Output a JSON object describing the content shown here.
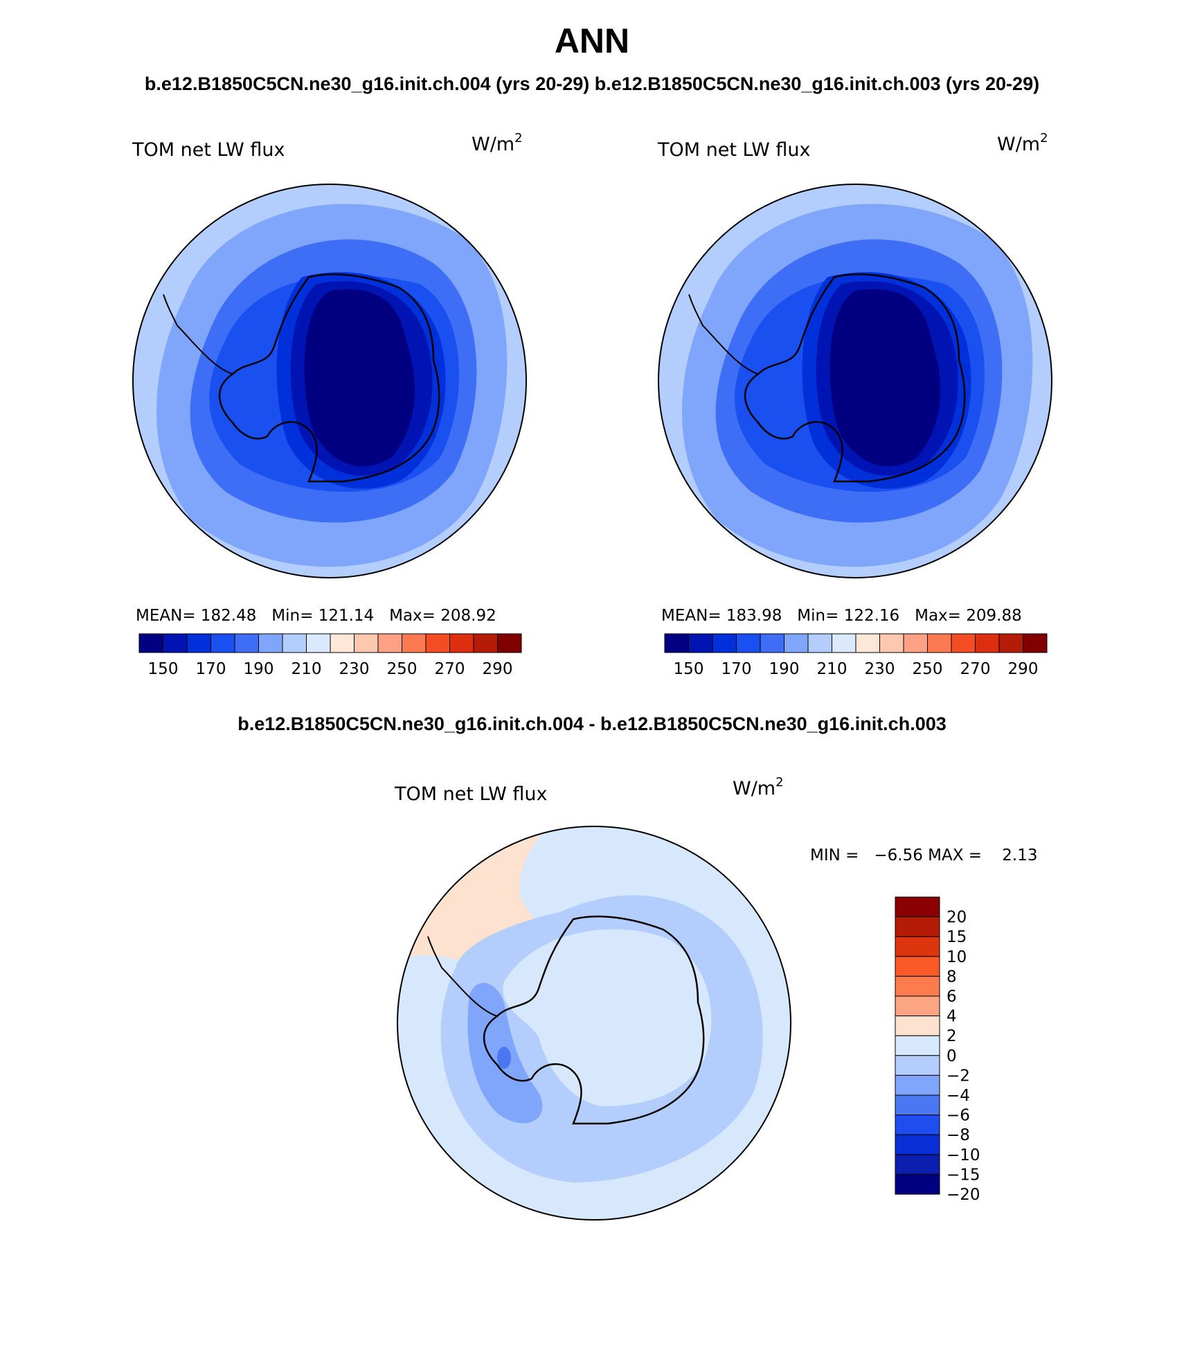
{
  "figure": {
    "title": "ANN",
    "subtitle": "b.e12.B1850C5CN.ne30_g16.init.ch.004 (yrs 20-29) b.e12.B1850C5CN.ne30_g16.init.ch.003 (yrs 20-29)",
    "diff_title": "b.e12.B1850C5CN.ne30_g16.init.ch.004 - b.e12.B1850C5CN.ne30_g16.init.ch.003"
  },
  "panels": [
    {
      "variable": "TOM net LW flux",
      "units_base": "W/m",
      "units_exp": "2",
      "stats": "MEAN= 182.48   Min= 121.14   Max= 208.92",
      "mean": 182.48,
      "min": 121.14,
      "max": 208.92
    },
    {
      "variable": "TOM net LW flux",
      "units_base": "W/m",
      "units_exp": "2",
      "stats": "MEAN= 183.98   Min= 122.16   Max= 209.88",
      "mean": 183.98,
      "min": 122.16,
      "max": 209.88
    }
  ],
  "diff_panel": {
    "variable": "TOM net LW flux",
    "units_base": "W/m",
    "units_exp": "2",
    "stats": "MIN =   −6.56 MAX =    2.13",
    "min": -6.56,
    "max": 2.13
  },
  "horizontal_colorbar": {
    "colors": [
      "#000080",
      "#0014b3",
      "#0030d9",
      "#1a4ff0",
      "#3d6ef5",
      "#7fa6fa",
      "#b3cdfc",
      "#dbe9fe",
      "#fde7d6",
      "#fcc9b0",
      "#fca183",
      "#fb7a52",
      "#f44d26",
      "#dd2e10",
      "#b51c08",
      "#800000"
    ],
    "labels": [
      "150",
      "170",
      "190",
      "210",
      "230",
      "250",
      "270",
      "290"
    ]
  },
  "vertical_colorbar": {
    "colors_top_to_bottom": [
      "#8b0000",
      "#b51c08",
      "#dd350d",
      "#fa5a28",
      "#fc7c4e",
      "#fca583",
      "#fde3cf",
      "#d7e8fc",
      "#b3cefc",
      "#7fa6fa",
      "#4b78f2",
      "#1f4df0",
      "#0a2fd6",
      "#0a1fae",
      "#000080"
    ],
    "labels": [
      "20",
      "15",
      "10",
      "8",
      "6",
      "4",
      "2",
      "0",
      "−2",
      "−4",
      "−6",
      "−8",
      "−10",
      "−15",
      "−20"
    ]
  },
  "chart_data": {
    "type": "map",
    "projection": "south polar stereographic",
    "region": "Antarctica / Southern Hemisphere",
    "season": "ANN",
    "panels": [
      {
        "case": "b.e12.B1850C5CN.ne30_g16.init.ch.004",
        "years": "20-29",
        "variable": "TOM net LW flux",
        "units": "W/m2",
        "mean": 182.48,
        "min": 121.14,
        "max": 208.92,
        "contour_levels": [
          140,
          150,
          160,
          170,
          180,
          190,
          200,
          210,
          220,
          230,
          240,
          250,
          260,
          270,
          280,
          290,
          300
        ]
      },
      {
        "case": "b.e12.B1850C5CN.ne30_g16.init.ch.003",
        "years": "20-29",
        "variable": "TOM net LW flux",
        "units": "W/m2",
        "mean": 183.98,
        "min": 122.16,
        "max": 209.88,
        "contour_levels": [
          140,
          150,
          160,
          170,
          180,
          190,
          200,
          210,
          220,
          230,
          240,
          250,
          260,
          270,
          280,
          290,
          300
        ]
      },
      {
        "case": "difference 004 - 003",
        "variable": "TOM net LW flux",
        "units": "W/m2",
        "min": -6.56,
        "max": 2.13,
        "contour_levels": [
          -20,
          -15,
          -10,
          -8,
          -6,
          -4,
          -2,
          0,
          2,
          4,
          6,
          8,
          10,
          15,
          20
        ]
      }
    ]
  }
}
